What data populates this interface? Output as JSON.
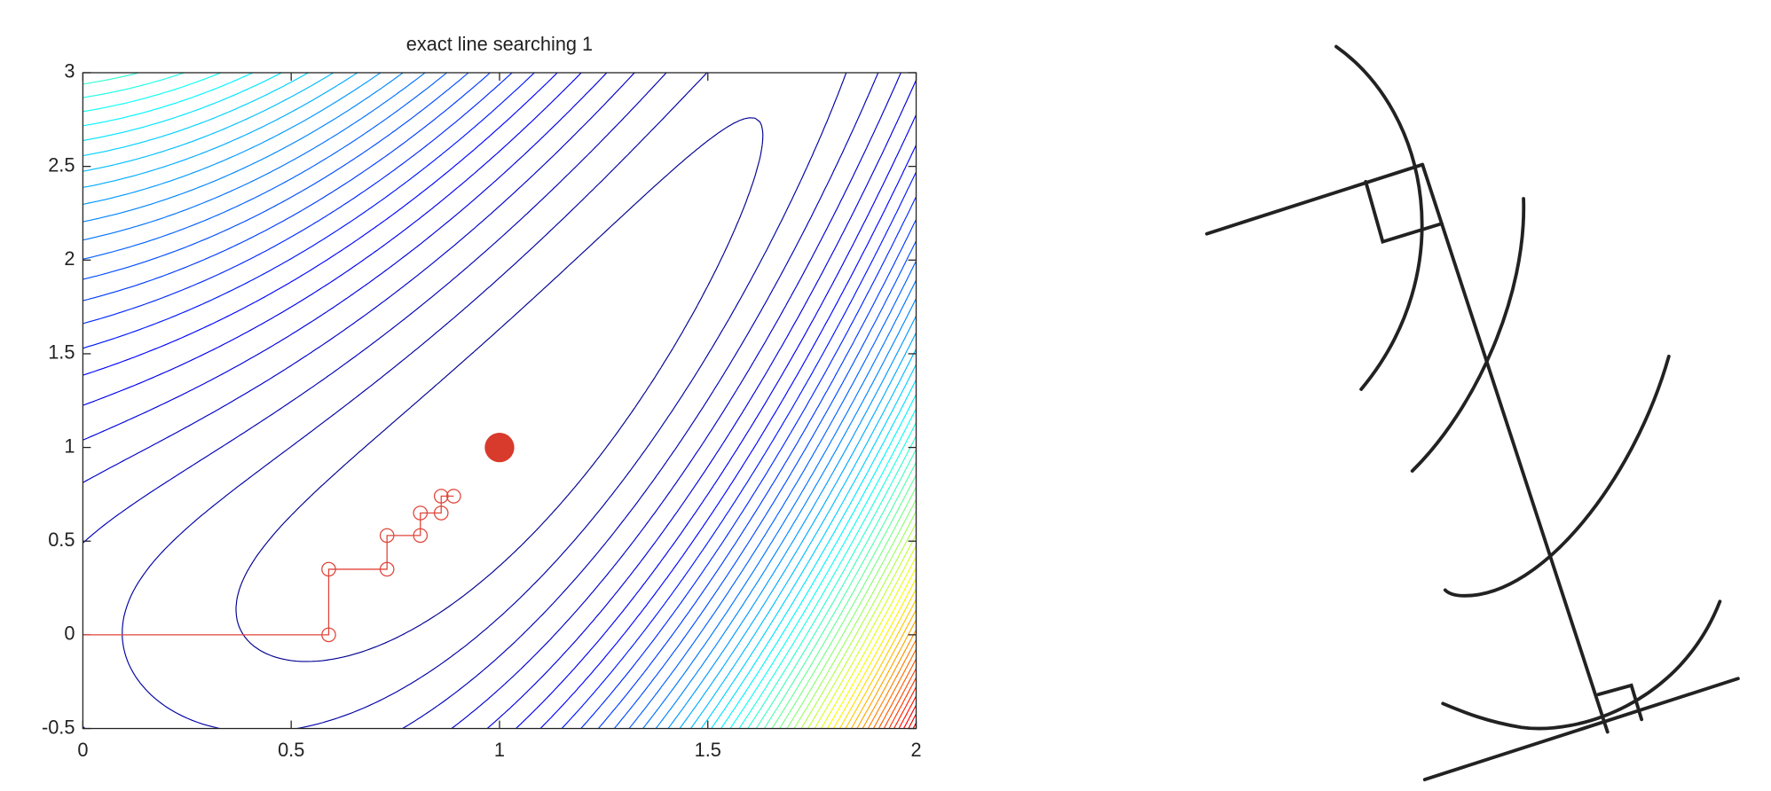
{
  "chart_data": {
    "type": "contour",
    "title": "exact line searching 1",
    "xlim": [
      0,
      2
    ],
    "ylim": [
      -0.5,
      3
    ],
    "xticks": [
      0,
      0.5,
      1,
      1.5,
      2
    ],
    "yticks": [
      -0.5,
      0,
      0.5,
      1,
      1.5,
      2,
      2.5,
      3
    ],
    "iterates": {
      "x": [
        0,
        0.59,
        0.59,
        0.73,
        0.73,
        0.81,
        0.81,
        0.86,
        0.86,
        0.89
      ],
      "y": [
        0,
        0,
        0.35,
        0.35,
        0.53,
        0.53,
        0.65,
        0.65,
        0.74,
        0.74
      ],
      "color": "#e0453a"
    },
    "minimum": {
      "x": 1,
      "y": 1,
      "color": "#d83a2c"
    }
  }
}
